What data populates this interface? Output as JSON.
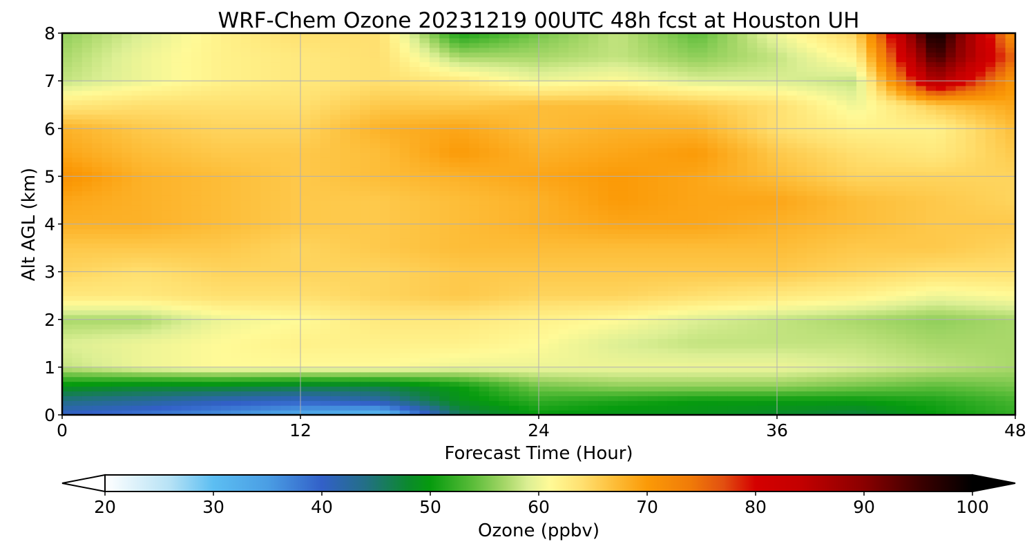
{
  "chart_data": {
    "type": "heatmap",
    "title": "WRF-Chem Ozone  20231219 00UTC 48h fcst at Houston UH",
    "xlabel": "Forecast Time (Hour)",
    "ylabel": "Alt AGL (km)",
    "xlim": [
      0,
      48
    ],
    "ylim": [
      0,
      8
    ],
    "x_ticks": [
      0,
      12,
      24,
      36,
      48
    ],
    "y_ticks": [
      0,
      1,
      2,
      3,
      4,
      5,
      6,
      7,
      8
    ],
    "grid": true,
    "x": [
      0,
      4,
      8,
      12,
      16,
      20,
      24,
      28,
      32,
      36,
      40,
      44,
      48
    ],
    "y": [
      0,
      0.3,
      0.6,
      1,
      1.5,
      2,
      2.5,
      3,
      3.5,
      4,
      4.5,
      5,
      5.5,
      6,
      6.5,
      7,
      7.5,
      8
    ],
    "z": [
      [
        40,
        38,
        36,
        33,
        30,
        46,
        50,
        49,
        49,
        48,
        47,
        50,
        52
      ],
      [
        44,
        43,
        41,
        40,
        42,
        49,
        52,
        51,
        50,
        50,
        50,
        51,
        53
      ],
      [
        49,
        48,
        48,
        47,
        47,
        50,
        55,
        56,
        56,
        56,
        55,
        54,
        55
      ],
      [
        58,
        60,
        61,
        61,
        61,
        60,
        60,
        60,
        60,
        60,
        59,
        58,
        57
      ],
      [
        59,
        60,
        61,
        62,
        62,
        62,
        61,
        59,
        58,
        58,
        58,
        57,
        57
      ],
      [
        57,
        57,
        60,
        61,
        63,
        63,
        62,
        61,
        59,
        58,
        57,
        56,
        57
      ],
      [
        63,
        63,
        64,
        64,
        65,
        66,
        65,
        65,
        64,
        63,
        62,
        60,
        61
      ],
      [
        65,
        64,
        65,
        65,
        65,
        66,
        66,
        66,
        66,
        66,
        65,
        64,
        64
      ],
      [
        66,
        66,
        66,
        65,
        66,
        67,
        67,
        67,
        67,
        67,
        66,
        66,
        65
      ],
      [
        68,
        68,
        67,
        66,
        66,
        67,
        68,
        69,
        69,
        68,
        67,
        66,
        66
      ],
      [
        69,
        68,
        67,
        66,
        66,
        67,
        68,
        70,
        69,
        69,
        67,
        66,
        65
      ],
      [
        71,
        68,
        67,
        66,
        67,
        68,
        69,
        70,
        69,
        67,
        65,
        65,
        65
      ],
      [
        69,
        67,
        66,
        66,
        67,
        70,
        68,
        69,
        70,
        66,
        64,
        63,
        66
      ],
      [
        68,
        66,
        65,
        65,
        68,
        69,
        67,
        68,
        68,
        64,
        62,
        62,
        67
      ],
      [
        63,
        64,
        64,
        64,
        66,
        66,
        67,
        67,
        66,
        64,
        60,
        66,
        69
      ],
      [
        58,
        60,
        62,
        63,
        64,
        63,
        60,
        61,
        59,
        59,
        58,
        87,
        70
      ],
      [
        57,
        60,
        62,
        63,
        64,
        57,
        57,
        58,
        56,
        58,
        62,
        95,
        75
      ],
      [
        56,
        59,
        62,
        64,
        64,
        51,
        55,
        58,
        54,
        60,
        65,
        100,
        70
      ]
    ],
    "colorbar": {
      "label": "Ozone  (ppbv)",
      "min": 20,
      "max": 100,
      "ticks": [
        20,
        30,
        40,
        50,
        60,
        70,
        80,
        90,
        100
      ],
      "extend": "both",
      "stops": [
        {
          "v": 20,
          "c": "#ffffff"
        },
        {
          "v": 26,
          "c": "#b6e2f5"
        },
        {
          "v": 30,
          "c": "#5cbef2"
        },
        {
          "v": 35,
          "c": "#4a9ee4"
        },
        {
          "v": 40,
          "c": "#3260c8"
        },
        {
          "v": 44,
          "c": "#236f86"
        },
        {
          "v": 48,
          "c": "#0b8a2c"
        },
        {
          "v": 50,
          "c": "#069b0e"
        },
        {
          "v": 54,
          "c": "#5cbd3a"
        },
        {
          "v": 57,
          "c": "#a9d86a"
        },
        {
          "v": 59,
          "c": "#dcef94"
        },
        {
          "v": 61,
          "c": "#fffa97"
        },
        {
          "v": 64,
          "c": "#ffe070"
        },
        {
          "v": 67,
          "c": "#fdbd38"
        },
        {
          "v": 70,
          "c": "#fb9a07"
        },
        {
          "v": 74,
          "c": "#f07b08"
        },
        {
          "v": 77,
          "c": "#e25010"
        },
        {
          "v": 80,
          "c": "#d40000"
        },
        {
          "v": 84,
          "c": "#c40000"
        },
        {
          "v": 90,
          "c": "#8a0000"
        },
        {
          "v": 95,
          "c": "#3e0000"
        },
        {
          "v": 100,
          "c": "#000000"
        }
      ]
    }
  }
}
